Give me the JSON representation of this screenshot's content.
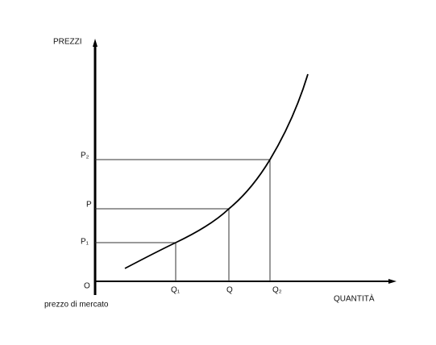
{
  "axes": {
    "y_label": "PREZZI",
    "x_label": "QUANTITÀ",
    "origin": "O",
    "origin_note": "prezzo di mercato"
  },
  "price_labels": [
    "P₁",
    "P",
    "P₂"
  ],
  "quantity_labels": [
    "Q₁",
    "Q",
    "Q₂"
  ]
}
